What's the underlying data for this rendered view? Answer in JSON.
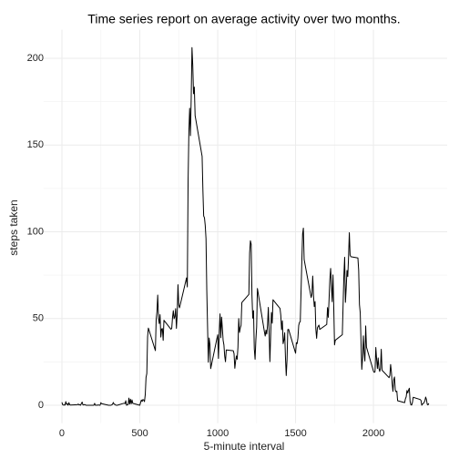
{
  "chart_data": {
    "type": "line",
    "title": "Time series report on average activity over two months.",
    "x_label": "5-minute interval",
    "y_label": "steps taken",
    "xlim": [
      -118,
      2473
    ],
    "ylim": [
      -10.3,
      216.5
    ],
    "xticks": [
      0,
      500,
      1000,
      1500,
      2000
    ],
    "yticks": [
      0,
      50,
      100,
      150,
      200
    ],
    "grid": true,
    "series": [
      {
        "color": "#000000",
        "x": [
          0,
          5,
          10,
          15,
          20,
          25,
          30,
          35,
          40,
          45,
          50,
          55,
          100,
          105,
          110,
          115,
          120,
          125,
          130,
          135,
          140,
          145,
          150,
          155,
          200,
          205,
          210,
          215,
          220,
          225,
          230,
          235,
          240,
          245,
          250,
          255,
          300,
          305,
          310,
          315,
          320,
          325,
          330,
          335,
          340,
          345,
          350,
          355,
          400,
          405,
          410,
          415,
          420,
          425,
          430,
          435,
          440,
          445,
          450,
          455,
          500,
          505,
          510,
          515,
          520,
          525,
          530,
          535,
          540,
          545,
          550,
          555,
          600,
          605,
          610,
          615,
          620,
          625,
          630,
          635,
          640,
          645,
          650,
          655,
          700,
          705,
          710,
          715,
          720,
          725,
          730,
          735,
          740,
          745,
          750,
          755,
          800,
          805,
          810,
          815,
          820,
          825,
          830,
          835,
          840,
          845,
          850,
          855,
          900,
          905,
          910,
          915,
          920,
          925,
          930,
          935,
          940,
          945,
          950,
          955,
          1000,
          1005,
          1010,
          1015,
          1020,
          1025,
          1030,
          1035,
          1040,
          1045,
          1050,
          1055,
          1100,
          1105,
          1110,
          1115,
          1120,
          1125,
          1130,
          1135,
          1140,
          1145,
          1150,
          1155,
          1200,
          1205,
          1210,
          1215,
          1220,
          1225,
          1230,
          1235,
          1240,
          1245,
          1250,
          1255,
          1300,
          1305,
          1310,
          1315,
          1320,
          1325,
          1330,
          1335,
          1340,
          1345,
          1350,
          1355,
          1400,
          1405,
          1410,
          1415,
          1420,
          1425,
          1430,
          1435,
          1440,
          1445,
          1450,
          1455,
          1500,
          1505,
          1510,
          1515,
          1520,
          1525,
          1530,
          1535,
          1540,
          1545,
          1550,
          1555,
          1600,
          1605,
          1610,
          1615,
          1620,
          1625,
          1630,
          1635,
          1640,
          1645,
          1650,
          1655,
          1700,
          1705,
          1710,
          1715,
          1720,
          1725,
          1730,
          1735,
          1740,
          1745,
          1750,
          1755,
          1800,
          1805,
          1810,
          1815,
          1820,
          1825,
          1830,
          1835,
          1840,
          1845,
          1850,
          1855,
          1900,
          1905,
          1910,
          1915,
          1920,
          1925,
          1930,
          1935,
          1940,
          1945,
          1950,
          1955,
          2000,
          2005,
          2010,
          2015,
          2020,
          2025,
          2030,
          2035,
          2040,
          2045,
          2050,
          2055,
          2100,
          2105,
          2110,
          2115,
          2120,
          2125,
          2130,
          2135,
          2140,
          2145,
          2150,
          2155,
          2200,
          2205,
          2210,
          2215,
          2220,
          2225,
          2230,
          2235,
          2240,
          2245,
          2250,
          2255,
          2300,
          2305,
          2310,
          2315,
          2320,
          2325,
          2330,
          2335,
          2340,
          2345,
          2350,
          2355
        ],
        "values": [
          1.7,
          0.3,
          0.1,
          0.2,
          0.1,
          2.1,
          0.5,
          0.9,
          0,
          1.5,
          0.3,
          0.1,
          0.3,
          0.7,
          0.2,
          0.3,
          0,
          1.1,
          1.8,
          0.2,
          0.2,
          0.4,
          0.3,
          0,
          0,
          0,
          1.1,
          0,
          0,
          0.1,
          0,
          0.2,
          0,
          0,
          1.5,
          0.9,
          0,
          0,
          0,
          0,
          0.2,
          0.6,
          1.6,
          0.6,
          0.5,
          0.1,
          0,
          0,
          1.2,
          0.9,
          2.6,
          0,
          0.3,
          0.4,
          4.1,
          0.7,
          3.5,
          0.8,
          3.1,
          1.1,
          0,
          1.6,
          3,
          2.2,
          3.3,
          3,
          2.1,
          6.1,
          16,
          18.3,
          39.5,
          44.5,
          31.5,
          49.3,
          53.8,
          63.5,
          50,
          47.1,
          52.2,
          39.3,
          44,
          44.2,
          37.4,
          49,
          43.8,
          44.4,
          50.5,
          54.5,
          49.9,
          51,
          55.7,
          44.3,
          52.3,
          69.5,
          57.8,
          56.2,
          73.4,
          68.2,
          129.4,
          157.5,
          171.2,
          155.4,
          177.3,
          206.2,
          195.9,
          179.6,
          183.4,
          167,
          143.5,
          124,
          109.1,
          108.1,
          103.7,
          96,
          66.2,
          45.2,
          24.8,
          38.8,
          35,
          21.1,
          40.6,
          27,
          42.4,
          52.7,
          38.9,
          50.8,
          44.3,
          37.4,
          34.7,
          28.3,
          25.1,
          31.9,
          31.4,
          29.7,
          21.3,
          25.5,
          28.4,
          26.5,
          33.4,
          50,
          42,
          44.6,
          46,
          59.2,
          63.9,
          87.7,
          94.8,
          92.8,
          63.4,
          50.2,
          54.5,
          32.4,
          26.5,
          37.7,
          45.1,
          67.3,
          42.3,
          39.9,
          43.3,
          41,
          46.2,
          56.4,
          42.8,
          25.1,
          40,
          53.5,
          47.3,
          60.8,
          55.8,
          52,
          43.6,
          48.7,
          35.5,
          37.5,
          41.8,
          27.5,
          17.1,
          26.1,
          43.6,
          43.8,
          30,
          36.1,
          35.5,
          38.8,
          46,
          47.8,
          48.1,
          65.3,
          82.9,
          98.7,
          102.1,
          84,
          62.1,
          64.1,
          74.5,
          63.2,
          56.9,
          59.8,
          43.9,
          38.6,
          44.7,
          45.5,
          46.2,
          43.7,
          46.6,
          56.3,
          50.7,
          61.2,
          72.7,
          78.9,
          68.9,
          59.7,
          75.1,
          56.5,
          34.8,
          37.5,
          40.7,
          58,
          74.7,
          85.3,
          59.3,
          67.8,
          77.7,
          74.2,
          85.3,
          99.5,
          86.6,
          85.6,
          84.9,
          77.8,
          58,
          53.4,
          36.3,
          20.7,
          27.4,
          40,
          30.2,
          25.5,
          45.7,
          33.5,
          19.6,
          19,
          19.3,
          33.3,
          26.8,
          21.2,
          27.3,
          21.3,
          19.5,
          21.3,
          32.3,
          20.2,
          15.9,
          17.2,
          23.5,
          19.2,
          12.5,
          8,
          14.7,
          16.3,
          8.7,
          7.8,
          8.1,
          2.6,
          1.5,
          3.7,
          4.8,
          8.5,
          7.1,
          8.7,
          9.8,
          2.2,
          0.3,
          0.1,
          1.6,
          4.6,
          3.3,
          2.8,
          0,
          0.8,
          1,
          1.6,
          2.6,
          4.7,
          3.3,
          0.6,
          0.2,
          1.1
        ]
      }
    ]
  }
}
